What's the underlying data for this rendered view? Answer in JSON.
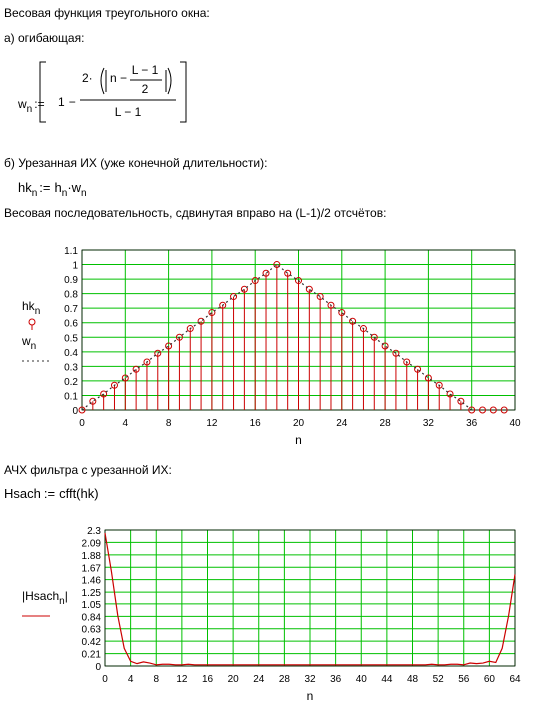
{
  "title": "Весовая функция треугольного окна:",
  "section_a": "а) огибающая:",
  "formula_w": {
    "lhs": "w",
    "lhs_sub": "n",
    "assign": ":=",
    "one": "1",
    "minus": "−",
    "coef": "2·",
    "inner": "n −",
    "inner_num": "L − 1",
    "inner_den": "2",
    "den": "L − 1"
  },
  "section_b": "б) Урезанная ИХ (уже конечной длительности):",
  "formula_hk": {
    "lhs": "hk",
    "lhs_sub": "n",
    "assign": ":=",
    "h": "h",
    "h_sub": "n",
    "w": "·w",
    "w_sub": "n"
  },
  "caption_1": "Весовая последовательность, сдвинутая вправо на (L-1)/2 отсчётов:",
  "caption_2": "АЧХ фильтра с урезанной ИХ:",
  "formula_fft": {
    "lhs": "Hsach",
    "assign": ":=",
    "rhs": "cfft(hk)"
  },
  "chart_data": [
    {
      "type": "stem",
      "xlabel": "n",
      "xlim": [
        0,
        40
      ],
      "ylim": [
        0,
        1.1
      ],
      "xticks": [
        0,
        4,
        8,
        12,
        16,
        20,
        24,
        28,
        32,
        36,
        40
      ],
      "yticks": [
        0,
        0.1,
        0.2,
        0.3,
        0.4,
        0.5,
        0.6,
        0.7,
        0.8,
        0.9,
        1,
        1.1
      ],
      "grid": true,
      "grid_color": "#00c000",
      "series": [
        {
          "name": "hk",
          "name_sub": "n",
          "color": "#cc0000",
          "style": "stem",
          "x": [
            0,
            1,
            2,
            3,
            4,
            5,
            6,
            7,
            8,
            9,
            10,
            11,
            12,
            13,
            14,
            15,
            16,
            17,
            18,
            19,
            20,
            21,
            22,
            23,
            24,
            25,
            26,
            27,
            28,
            29,
            30,
            31,
            32,
            33,
            34,
            35,
            36,
            37,
            38,
            39
          ],
          "values": [
            0,
            0.06,
            0.11,
            0.17,
            0.22,
            0.28,
            0.33,
            0.39,
            0.44,
            0.5,
            0.56,
            0.61,
            0.67,
            0.72,
            0.78,
            0.83,
            0.89,
            0.94,
            1,
            0.94,
            0.89,
            0.83,
            0.78,
            0.72,
            0.67,
            0.61,
            0.56,
            0.5,
            0.44,
            0.39,
            0.33,
            0.28,
            0.22,
            0.17,
            0.11,
            0.06,
            0,
            0,
            0,
            0
          ]
        },
        {
          "name": "w",
          "name_sub": "n",
          "color": "#333333",
          "style": "dotted",
          "x": [
            0,
            1,
            2,
            3,
            4,
            5,
            6,
            7,
            8,
            9,
            10,
            11,
            12,
            13,
            14,
            15,
            16,
            17,
            18,
            19,
            20,
            21,
            22,
            23,
            24,
            25,
            26,
            27,
            28,
            29,
            30,
            31,
            32,
            33,
            34,
            35,
            36
          ],
          "values": [
            0,
            0.06,
            0.11,
            0.17,
            0.22,
            0.28,
            0.33,
            0.39,
            0.44,
            0.5,
            0.56,
            0.61,
            0.67,
            0.72,
            0.78,
            0.83,
            0.89,
            0.94,
            1,
            0.94,
            0.89,
            0.83,
            0.78,
            0.72,
            0.67,
            0.61,
            0.56,
            0.5,
            0.44,
            0.39,
            0.33,
            0.28,
            0.22,
            0.17,
            0.11,
            0.06,
            0
          ]
        }
      ]
    },
    {
      "type": "line",
      "xlabel": "n",
      "xlim": [
        0,
        64
      ],
      "ylim": [
        0,
        2.3
      ],
      "xticks": [
        0,
        4,
        8,
        12,
        16,
        20,
        24,
        28,
        32,
        36,
        40,
        44,
        48,
        52,
        56,
        60,
        64
      ],
      "yticks": [
        0,
        0.21,
        0.42,
        0.63,
        0.84,
        1.05,
        1.25,
        1.46,
        1.67,
        1.88,
        2.09,
        2.3
      ],
      "grid": true,
      "grid_color": "#00c000",
      "series": [
        {
          "name": "|Hsach",
          "name_sub": "n",
          "name_end": "|",
          "color": "#cc0000",
          "style": "solid",
          "x": [
            0,
            1,
            2,
            3,
            4,
            5,
            6,
            7,
            8,
            9,
            10,
            11,
            12,
            13,
            14,
            15,
            16,
            17,
            18,
            19,
            20,
            21,
            22,
            23,
            24,
            25,
            26,
            27,
            28,
            29,
            30,
            31,
            32,
            33,
            34,
            35,
            36,
            37,
            38,
            39,
            40,
            41,
            42,
            43,
            44,
            45,
            46,
            47,
            48,
            49,
            50,
            51,
            52,
            53,
            54,
            55,
            56,
            57,
            58,
            59,
            60,
            61,
            62,
            63,
            64
          ],
          "values": [
            2.25,
            1.6,
            0.85,
            0.3,
            0.08,
            0.04,
            0.07,
            0.05,
            0.02,
            0.03,
            0.03,
            0.02,
            0.02,
            0.03,
            0.02,
            0.02,
            0.02,
            0.02,
            0.02,
            0.02,
            0.02,
            0.02,
            0.02,
            0.02,
            0.02,
            0.02,
            0.02,
            0.02,
            0.02,
            0.02,
            0.02,
            0.02,
            0.02,
            0.02,
            0.02,
            0.02,
            0.02,
            0.02,
            0.02,
            0.02,
            0.02,
            0.02,
            0.02,
            0.02,
            0.02,
            0.02,
            0.02,
            0.02,
            0.02,
            0.02,
            0.02,
            0.03,
            0.02,
            0.02,
            0.03,
            0.03,
            0.02,
            0.05,
            0.04,
            0.05,
            0.08,
            0.06,
            0.3,
            0.85,
            1.55
          ]
        }
      ]
    }
  ]
}
